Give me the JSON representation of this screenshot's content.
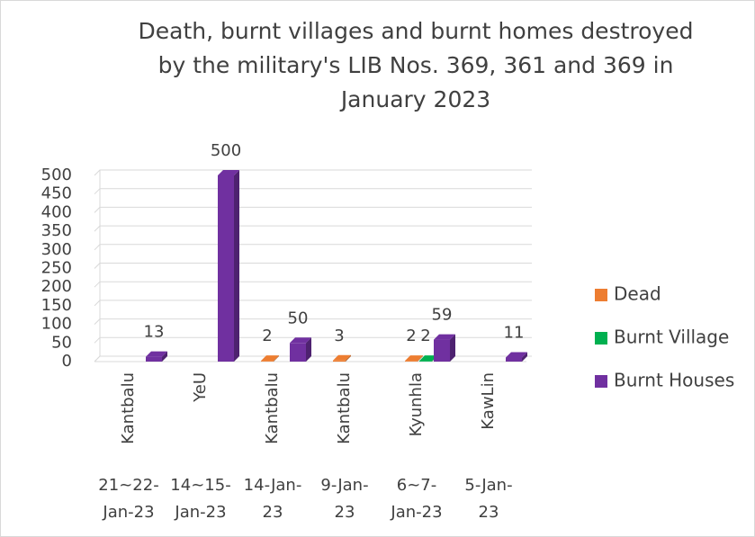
{
  "chart_data": {
    "type": "bar3d",
    "title": [
      "Death, burnt villages and burnt homes destroyed",
      "by the military's LIB Nos. 369, 361 and 369 in",
      "January 2023"
    ],
    "categories": [
      "Kantbalu",
      "YeU",
      "Kantbalu",
      "Kantbalu",
      "Kyunhla",
      "KawLin"
    ],
    "dates": [
      [
        "21~22-",
        "Jan-23"
      ],
      [
        "14~15-",
        "Jan-23"
      ],
      [
        "14-Jan-",
        "23"
      ],
      [
        "9-Jan-",
        "23"
      ],
      [
        "6~7-",
        "Jan-23"
      ],
      [
        "5-Jan-",
        "23"
      ]
    ],
    "series": [
      {
        "name": "Dead",
        "color": "#ed7d31",
        "values": [
          null,
          null,
          2,
          3,
          2,
          null
        ]
      },
      {
        "name": "Burnt Village",
        "color": "#00b050",
        "values": [
          null,
          null,
          null,
          null,
          2,
          null
        ]
      },
      {
        "name": "Burnt Houses",
        "color": "#7030a0",
        "values": [
          13,
          500,
          50,
          null,
          59,
          11
        ]
      }
    ],
    "ylim": [
      0,
      500
    ],
    "yticks": [
      0,
      50,
      100,
      150,
      200,
      250,
      300,
      350,
      400,
      450,
      500
    ],
    "grid": true,
    "legend": "right"
  }
}
